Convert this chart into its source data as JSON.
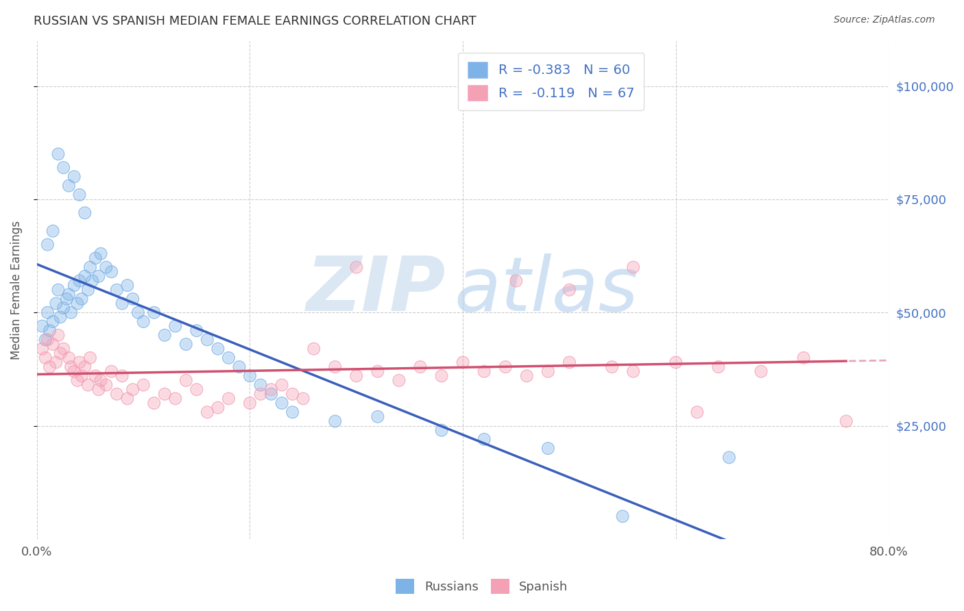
{
  "title": "RUSSIAN VS SPANISH MEDIAN FEMALE EARNINGS CORRELATION CHART",
  "source": "Source: ZipAtlas.com",
  "ylabel": "Median Female Earnings",
  "ytick_labels": [
    "$25,000",
    "$50,000",
    "$75,000",
    "$100,000"
  ],
  "ytick_values": [
    25000,
    50000,
    75000,
    100000
  ],
  "ymin": 0,
  "ymax": 110000,
  "xmin": 0.0,
  "xmax": 0.8,
  "russian_color": "#7EB3E8",
  "spanish_color": "#F4A0B5",
  "russian_line_color": "#3A5FBB",
  "spanish_line_color": "#D05070",
  "background_color": "#FFFFFF",
  "russian_scatter_x": [
    0.005,
    0.008,
    0.01,
    0.012,
    0.015,
    0.018,
    0.02,
    0.022,
    0.025,
    0.028,
    0.03,
    0.032,
    0.035,
    0.038,
    0.04,
    0.042,
    0.045,
    0.048,
    0.05,
    0.052,
    0.055,
    0.058,
    0.06,
    0.065,
    0.07,
    0.075,
    0.08,
    0.085,
    0.09,
    0.095,
    0.01,
    0.015,
    0.02,
    0.025,
    0.03,
    0.035,
    0.04,
    0.045,
    0.1,
    0.11,
    0.12,
    0.13,
    0.14,
    0.15,
    0.16,
    0.17,
    0.18,
    0.19,
    0.2,
    0.21,
    0.22,
    0.23,
    0.24,
    0.28,
    0.32,
    0.38,
    0.42,
    0.48,
    0.55,
    0.65
  ],
  "russian_scatter_y": [
    47000,
    44000,
    50000,
    46000,
    48000,
    52000,
    55000,
    49000,
    51000,
    53000,
    54000,
    50000,
    56000,
    52000,
    57000,
    53000,
    58000,
    55000,
    60000,
    57000,
    62000,
    58000,
    63000,
    60000,
    59000,
    55000,
    52000,
    56000,
    53000,
    50000,
    65000,
    68000,
    85000,
    82000,
    78000,
    80000,
    76000,
    72000,
    48000,
    50000,
    45000,
    47000,
    43000,
    46000,
    44000,
    42000,
    40000,
    38000,
    36000,
    34000,
    32000,
    30000,
    28000,
    26000,
    27000,
    24000,
    22000,
    20000,
    5000,
    18000
  ],
  "spanish_scatter_x": [
    0.005,
    0.008,
    0.01,
    0.012,
    0.015,
    0.018,
    0.02,
    0.022,
    0.025,
    0.03,
    0.032,
    0.035,
    0.038,
    0.04,
    0.042,
    0.045,
    0.048,
    0.05,
    0.055,
    0.058,
    0.06,
    0.065,
    0.07,
    0.075,
    0.08,
    0.085,
    0.09,
    0.1,
    0.11,
    0.12,
    0.13,
    0.14,
    0.15,
    0.16,
    0.17,
    0.18,
    0.2,
    0.21,
    0.22,
    0.23,
    0.24,
    0.25,
    0.26,
    0.28,
    0.3,
    0.32,
    0.34,
    0.36,
    0.38,
    0.4,
    0.42,
    0.44,
    0.46,
    0.48,
    0.5,
    0.54,
    0.56,
    0.6,
    0.64,
    0.68,
    0.72,
    0.76,
    0.3,
    0.45,
    0.5,
    0.56,
    0.62
  ],
  "spanish_scatter_y": [
    42000,
    40000,
    44000,
    38000,
    43000,
    39000,
    45000,
    41000,
    42000,
    40000,
    38000,
    37000,
    35000,
    39000,
    36000,
    38000,
    34000,
    40000,
    36000,
    33000,
    35000,
    34000,
    37000,
    32000,
    36000,
    31000,
    33000,
    34000,
    30000,
    32000,
    31000,
    35000,
    33000,
    28000,
    29000,
    31000,
    30000,
    32000,
    33000,
    34000,
    32000,
    31000,
    42000,
    38000,
    36000,
    37000,
    35000,
    38000,
    36000,
    39000,
    37000,
    38000,
    36000,
    37000,
    39000,
    38000,
    37000,
    39000,
    38000,
    37000,
    40000,
    26000,
    60000,
    57000,
    55000,
    60000,
    28000
  ],
  "legend_line1": "R = -0.383   N = 60",
  "legend_line2": "R =  -0.119   N = 67",
  "legend_color": "#4472C4"
}
